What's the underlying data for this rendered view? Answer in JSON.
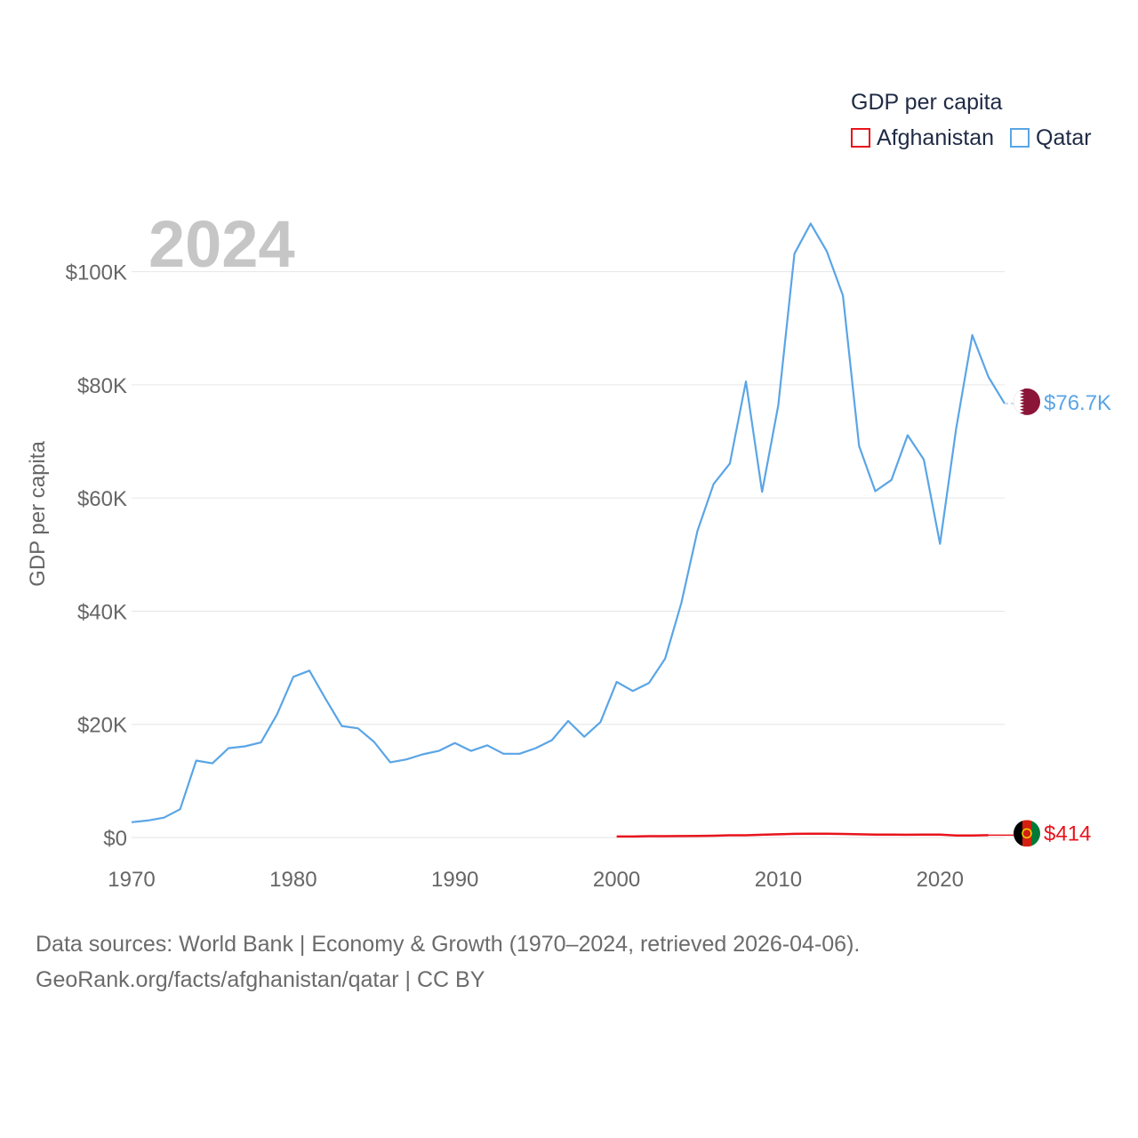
{
  "chart_data": {
    "type": "line",
    "year_label": "2024",
    "ylabel": "GDP per capita",
    "xlabel": "",
    "xlim": [
      1970,
      2024
    ],
    "ylim": [
      0,
      110000
    ],
    "x_ticks": [
      1970,
      1980,
      1990,
      2000,
      2010,
      2020
    ],
    "x_tick_labels": [
      "1970",
      "1980",
      "1990",
      "2000",
      "2010",
      "2020"
    ],
    "y_ticks": [
      0,
      20000,
      40000,
      60000,
      80000,
      100000
    ],
    "y_tick_labels": [
      "$0",
      "$20K",
      "$40K",
      "$60K",
      "$80K",
      "$100K"
    ],
    "legend": {
      "title": "GDP per capita",
      "position": "top-right"
    },
    "series": [
      {
        "name": "Afghanistan",
        "color": "#e8141c",
        "end_label": "$414",
        "end_value": 414,
        "x": [
          2000,
          2001,
          2002,
          2003,
          2004,
          2005,
          2006,
          2007,
          2008,
          2009,
          2010,
          2011,
          2012,
          2013,
          2014,
          2015,
          2016,
          2017,
          2018,
          2019,
          2020,
          2021,
          2022,
          2023
        ],
        "values": [
          180,
          180,
          233,
          234,
          254,
          288,
          310,
          391,
          393,
          480,
          565,
          640,
          682,
          653,
          626,
          566,
          523,
          526,
          492,
          497,
          512,
          364,
          357,
          414
        ]
      },
      {
        "name": "Qatar",
        "color": "#5aa5e6",
        "end_label": "$76.7K",
        "end_value": 76700,
        "x": [
          1970,
          1971,
          1972,
          1973,
          1974,
          1975,
          1976,
          1977,
          1978,
          1979,
          1980,
          1981,
          1982,
          1983,
          1984,
          1985,
          1986,
          1987,
          1988,
          1989,
          1990,
          1991,
          1992,
          1993,
          1994,
          1995,
          1996,
          1997,
          1998,
          1999,
          2000,
          2001,
          2002,
          2003,
          2004,
          2005,
          2006,
          2007,
          2008,
          2009,
          2010,
          2011,
          2012,
          2013,
          2014,
          2015,
          2016,
          2017,
          2018,
          2019,
          2020,
          2021,
          2022,
          2023,
          2024
        ],
        "values": [
          2700,
          3000,
          3500,
          5000,
          13600,
          13100,
          15800,
          16100,
          16800,
          21800,
          28400,
          29500,
          24500,
          19700,
          19300,
          16900,
          13300,
          13800,
          14700,
          15300,
          16700,
          15300,
          16300,
          14800,
          14800,
          15800,
          17200,
          20600,
          17800,
          20400,
          27500,
          25900,
          27300,
          31600,
          41400,
          54200,
          62500,
          66100,
          80600,
          61100,
          76400,
          103200,
          108500,
          103600,
          95800,
          69200,
          61200,
          63200,
          71100,
          66800,
          51900,
          72200,
          88800,
          81400,
          76700
        ]
      }
    ],
    "flags": {
      "qatar": "#8a1538",
      "afghanistan_left": "#000000",
      "afghanistan_mid": "#d32011",
      "afghanistan_right": "#007a36"
    },
    "grid": true
  },
  "footer": {
    "line1": "Data sources: World Bank | Economy & Growth (1970–2024, retrieved 2026-04-06).",
    "line2": "GeoRank.org/facts/afghanistan/qatar | CC BY"
  }
}
